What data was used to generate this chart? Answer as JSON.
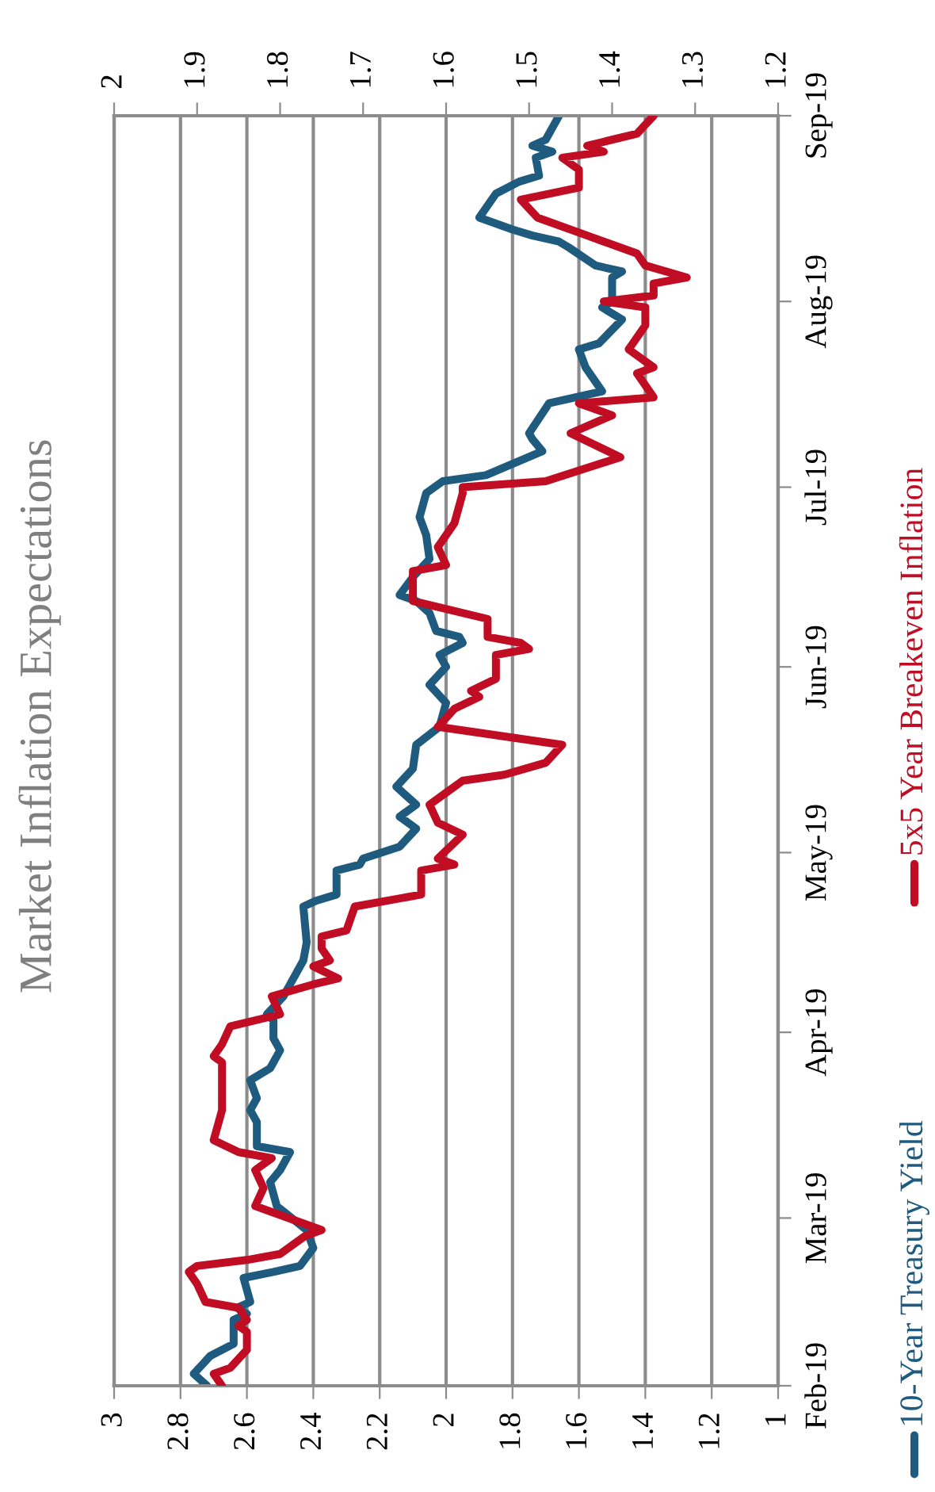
{
  "chart_data": {
    "type": "line",
    "orientation": "horizontal",
    "title": "Market Inflation Expectations",
    "ylim": [
      "2019-02-01",
      "2019-09-01"
    ],
    "yticks": [
      {
        "value": "2019-02-01",
        "label": "Feb-19"
      },
      {
        "value": "2019-03-01",
        "label": "Mar-19"
      },
      {
        "value": "2019-04-01",
        "label": "Apr-19"
      },
      {
        "value": "2019-05-01",
        "label": "May-19"
      },
      {
        "value": "2019-06-01",
        "label": "Jun-19"
      },
      {
        "value": "2019-07-01",
        "label": "Jul-19"
      },
      {
        "value": "2019-08-01",
        "label": "Aug-19"
      },
      {
        "value": "2019-09-01",
        "label": "Sep-19"
      }
    ],
    "xlim": [
      3,
      1
    ],
    "xticks": [
      3,
      2.8,
      2.6,
      2.4,
      2.2,
      2,
      1.8,
      1.6,
      1.4,
      1.2,
      1
    ],
    "x2lim": [
      2,
      1.2
    ],
    "x2ticks": [
      2,
      1.9,
      1.8,
      1.7,
      1.6,
      1.5,
      1.4,
      1.3,
      1.2
    ],
    "grid": "x",
    "legend": "right",
    "line_style": "solid",
    "series": [
      {
        "name": "10-Year Treasury Yield",
        "color": "#1f5b7e",
        "x": [
          "2019-02-01",
          "2019-02-03",
          "2019-02-06",
          "2019-02-08",
          "2019-02-12",
          "2019-02-13",
          "2019-02-14",
          "2019-02-15",
          "2019-02-19",
          "2019-02-20",
          "2019-02-21",
          "2019-02-24",
          "2019-02-27",
          "2019-03-03",
          "2019-03-07",
          "2019-03-09",
          "2019-03-12",
          "2019-03-13",
          "2019-03-17",
          "2019-03-19",
          "2019-03-21",
          "2019-03-24",
          "2019-03-26",
          "2019-03-29",
          "2019-03-31",
          "2019-04-03",
          "2019-04-04",
          "2019-04-07",
          "2019-04-10",
          "2019-04-13",
          "2019-04-16",
          "2019-04-22",
          "2019-04-23",
          "2019-04-24",
          "2019-04-28",
          "2019-04-29",
          "2019-04-30",
          "2019-05-02",
          "2019-05-05",
          "2019-05-07",
          "2019-05-09",
          "2019-05-12",
          "2019-05-15",
          "2019-05-19",
          "2019-05-22",
          "2019-05-26",
          "2019-05-29",
          "2019-06-01",
          "2019-06-03",
          "2019-06-05",
          "2019-06-06",
          "2019-06-07",
          "2019-06-10",
          "2019-06-12",
          "2019-06-13",
          "2019-06-16",
          "2019-06-19",
          "2019-06-23",
          "2019-06-26",
          "2019-06-30",
          "2019-07-02",
          "2019-07-03",
          "2019-07-07",
          "2019-07-09",
          "2019-07-10",
          "2019-07-15",
          "2019-07-17",
          "2019-07-21",
          "2019-07-24",
          "2019-07-25",
          "2019-07-29",
          "2019-07-31",
          "2019-08-01",
          "2019-08-05",
          "2019-08-06",
          "2019-08-07",
          "2019-08-10",
          "2019-08-11",
          "2019-08-12",
          "2019-08-13",
          "2019-08-15",
          "2019-08-19",
          "2019-08-21",
          "2019-08-22",
          "2019-08-25",
          "2019-08-26",
          "2019-08-27",
          "2019-08-28",
          "2019-08-31",
          "2019-09-01"
        ],
        "values": [
          2.72,
          2.76,
          2.71,
          2.64,
          2.64,
          2.6,
          2.63,
          2.59,
          2.61,
          2.52,
          2.44,
          2.4,
          2.42,
          2.51,
          2.53,
          2.5,
          2.47,
          2.57,
          2.57,
          2.59,
          2.57,
          2.59,
          2.53,
          2.5,
          2.52,
          2.52,
          2.54,
          2.49,
          2.46,
          2.43,
          2.42,
          2.43,
          2.39,
          2.33,
          2.33,
          2.26,
          2.25,
          2.14,
          2.09,
          2.14,
          2.09,
          2.15,
          2.1,
          2.09,
          2.02,
          2.0,
          2.05,
          2.0,
          2.02,
          1.95,
          1.96,
          2.03,
          2.05,
          2.09,
          2.14,
          2.1,
          2.05,
          2.06,
          2.08,
          2.06,
          2.01,
          1.88,
          1.71,
          1.74,
          1.75,
          1.69,
          1.53,
          1.58,
          1.6,
          1.54,
          1.47,
          1.53,
          1.5,
          1.5,
          1.47,
          1.55,
          1.63,
          1.66,
          1.74,
          1.8,
          1.9,
          1.85,
          1.78,
          1.72,
          1.73,
          1.68,
          1.74,
          1.7,
          1.67,
          1.66
        ]
      },
      {
        "name": "5x5 Year Breakeven Inflation",
        "color": "#c00d24",
        "axis": "x2",
        "x": [
          "2019-02-01",
          "2019-02-03",
          "2019-02-04",
          "2019-02-07",
          "2019-02-10",
          "2019-02-11",
          "2019-02-12",
          "2019-02-14",
          "2019-02-15",
          "2019-02-18",
          "2019-02-20",
          "2019-02-21",
          "2019-02-22",
          "2019-02-23",
          "2019-02-26",
          "2019-02-27",
          "2019-03-03",
          "2019-03-06",
          "2019-03-09",
          "2019-03-11",
          "2019-03-12",
          "2019-03-14",
          "2019-03-19",
          "2019-03-22",
          "2019-03-27",
          "2019-03-28",
          "2019-03-30",
          "2019-04-02",
          "2019-04-04",
          "2019-04-07",
          "2019-04-09",
          "2019-04-10",
          "2019-04-12",
          "2019-04-13",
          "2019-04-15",
          "2019-04-17",
          "2019-04-18",
          "2019-04-22",
          "2019-04-24",
          "2019-04-28",
          "2019-04-29",
          "2019-04-30",
          "2019-05-04",
          "2019-05-06",
          "2019-05-09",
          "2019-05-11",
          "2019-05-13",
          "2019-05-14",
          "2019-05-16",
          "2019-05-19",
          "2019-05-22",
          "2019-05-25",
          "2019-05-27",
          "2019-05-28",
          "2019-05-30",
          "2019-06-03",
          "2019-06-04",
          "2019-06-05",
          "2019-06-06",
          "2019-06-09",
          "2019-06-12",
          "2019-06-17",
          "2019-06-18",
          "2019-06-21",
          "2019-06-25",
          "2019-06-30",
          "2019-07-01",
          "2019-07-02",
          "2019-07-06",
          "2019-07-10",
          "2019-07-13",
          "2019-07-15",
          "2019-07-16",
          "2019-07-20",
          "2019-07-21",
          "2019-07-24",
          "2019-07-28",
          "2019-07-31",
          "2019-08-01",
          "2019-08-02",
          "2019-08-04",
          "2019-08-05",
          "2019-08-07",
          "2019-08-09",
          "2019-08-11",
          "2019-08-12",
          "2019-08-15",
          "2019-08-18",
          "2019-08-20",
          "2019-08-23",
          "2019-08-25",
          "2019-08-26",
          "2019-08-27",
          "2019-08-29",
          "2019-09-01"
        ],
        "values": [
          1.87,
          1.88,
          1.86,
          1.84,
          1.84,
          1.85,
          1.84,
          1.85,
          1.89,
          1.9,
          1.91,
          1.9,
          1.84,
          1.8,
          1.77,
          1.75,
          1.83,
          1.82,
          1.83,
          1.81,
          1.85,
          1.88,
          1.87,
          1.87,
          1.87,
          1.88,
          1.87,
          1.86,
          1.8,
          1.81,
          1.76,
          1.73,
          1.76,
          1.74,
          1.75,
          1.75,
          1.72,
          1.71,
          1.63,
          1.63,
          1.59,
          1.61,
          1.58,
          1.61,
          1.62,
          1.6,
          1.58,
          1.53,
          1.48,
          1.46,
          1.61,
          1.59,
          1.56,
          1.57,
          1.54,
          1.54,
          1.5,
          1.51,
          1.55,
          1.55,
          1.64,
          1.64,
          1.6,
          1.61,
          1.59,
          1.58,
          1.58,
          1.48,
          1.39,
          1.45,
          1.4,
          1.44,
          1.35,
          1.37,
          1.35,
          1.38,
          1.36,
          1.36,
          1.41,
          1.35,
          1.35,
          1.31,
          1.36,
          1.37,
          1.41,
          1.43,
          1.49,
          1.51,
          1.44,
          1.44,
          1.46,
          1.41,
          1.43,
          1.37,
          1.35
        ]
      }
    ]
  }
}
